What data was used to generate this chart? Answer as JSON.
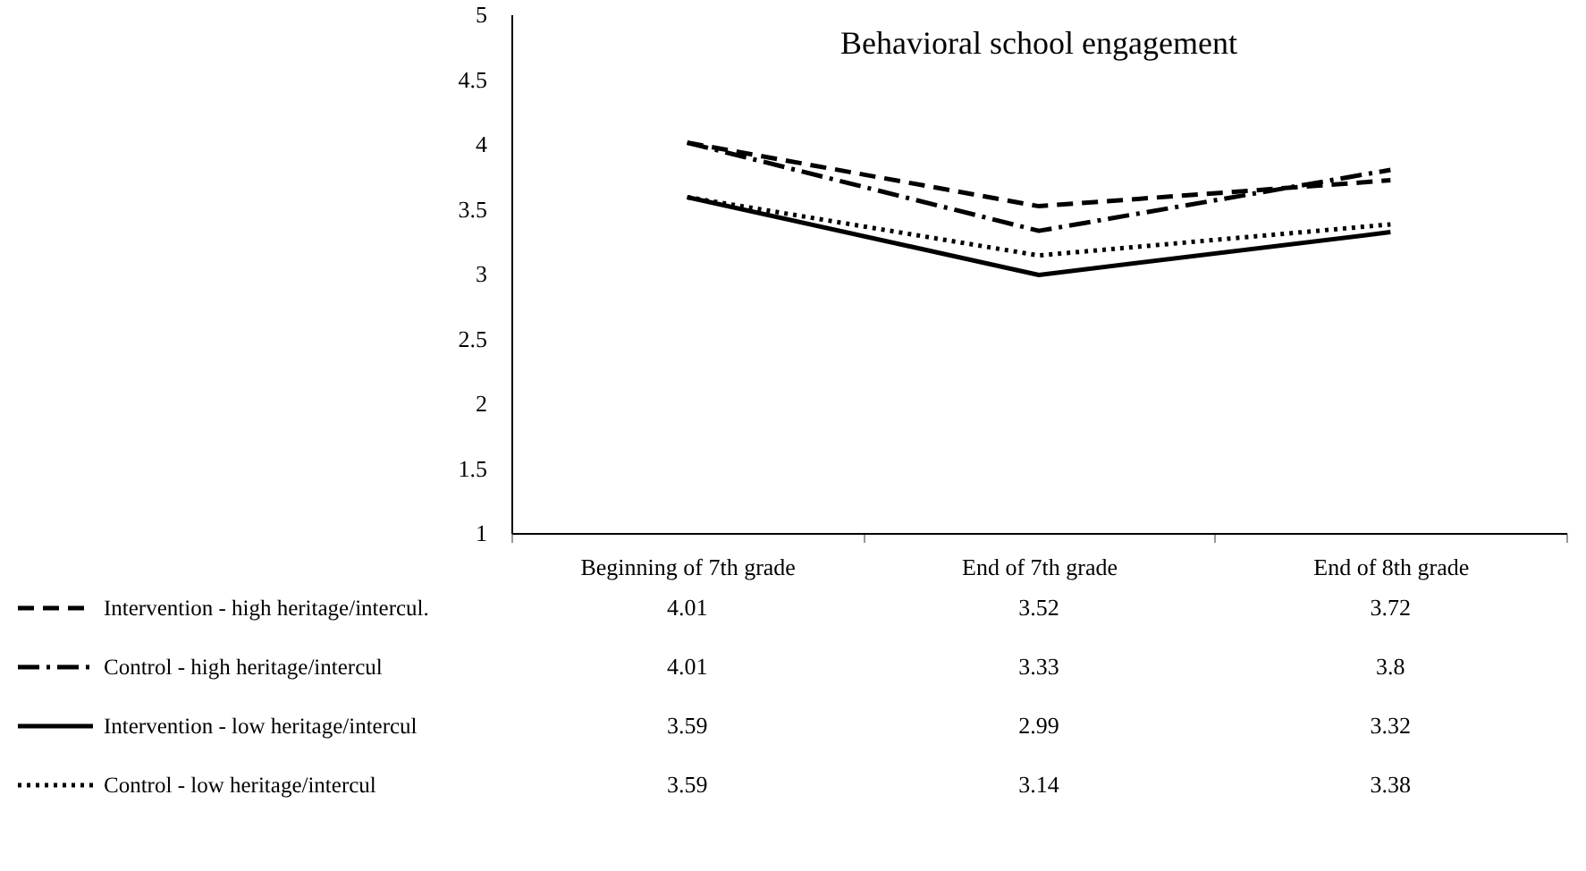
{
  "chart_data": {
    "type": "line",
    "title": "Behavioral school engagement",
    "categories": [
      "Beginning of 7th grade",
      "End of 7th grade",
      "End of 8th grade"
    ],
    "series": [
      {
        "name": "Intervention - high heritage/intercul.",
        "color": "#000000",
        "line_style": "dashed",
        "values": [
          4.01,
          3.52,
          3.72
        ]
      },
      {
        "name": "Control - high heritage/intercul",
        "color": "#000000",
        "line_style": "dashdot",
        "values": [
          4.01,
          3.33,
          3.8
        ]
      },
      {
        "name": "Intervention - low heritage/intercul",
        "color": "#000000",
        "line_style": "solid",
        "values": [
          3.59,
          2.99,
          3.32
        ]
      },
      {
        "name": "Control - low heritage/intercul",
        "color": "#000000",
        "line_style": "dotted",
        "values": [
          3.59,
          3.14,
          3.38
        ]
      }
    ],
    "ylim": [
      1,
      5
    ],
    "yticks": [
      1,
      1.5,
      2,
      2.5,
      3,
      3.5,
      4,
      4.5,
      5
    ],
    "data_labels": true,
    "legend": "bottom left",
    "marker": "none"
  }
}
